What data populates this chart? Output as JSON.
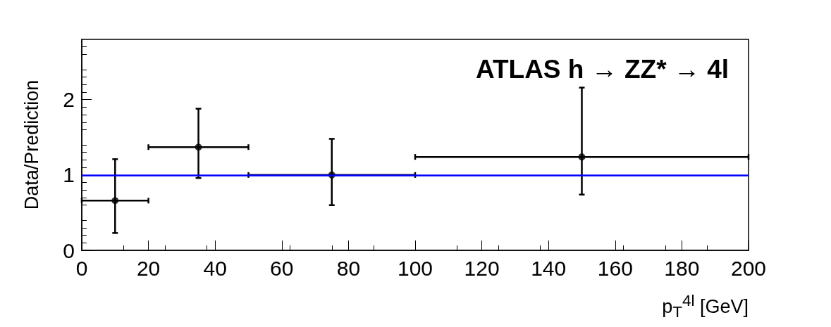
{
  "chart_data": {
    "type": "scatter",
    "x": [
      10,
      35,
      75,
      150
    ],
    "series": [
      {
        "color": "#000000",
        "values": [
          0.66,
          1.37,
          1.0,
          1.24
        ],
        "errors": [
          [
            0.23,
            1.21
          ],
          [
            0.96,
            1.88
          ],
          [
            0.6,
            1.48
          ],
          [
            0.74,
            2.16
          ]
        ],
        "xerrors": [
          [
            0,
            20
          ],
          [
            20,
            50
          ],
          [
            50,
            100
          ],
          [
            100,
            200
          ]
        ]
      }
    ],
    "xlabel": "p$_{T}$$^{4l}$ [GeV]",
    "ylabel": "Data/Prediction",
    "annotations": [
      "ATLAS h → ZZ* → 4l"
    ],
    "xlim": [
      0,
      200
    ],
    "xticks": [
      0,
      20,
      40,
      60,
      80,
      100,
      120,
      140,
      160,
      180,
      200
    ],
    "ylim": [
      0,
      2.8
    ],
    "yticks": [
      0,
      1,
      2
    ],
    "ref_lines": [
      {
        "axis": "y",
        "value": 1,
        "color": "#0000ff",
        "line_style": "solid"
      }
    ],
    "marker": "circle",
    "grid": false
  }
}
